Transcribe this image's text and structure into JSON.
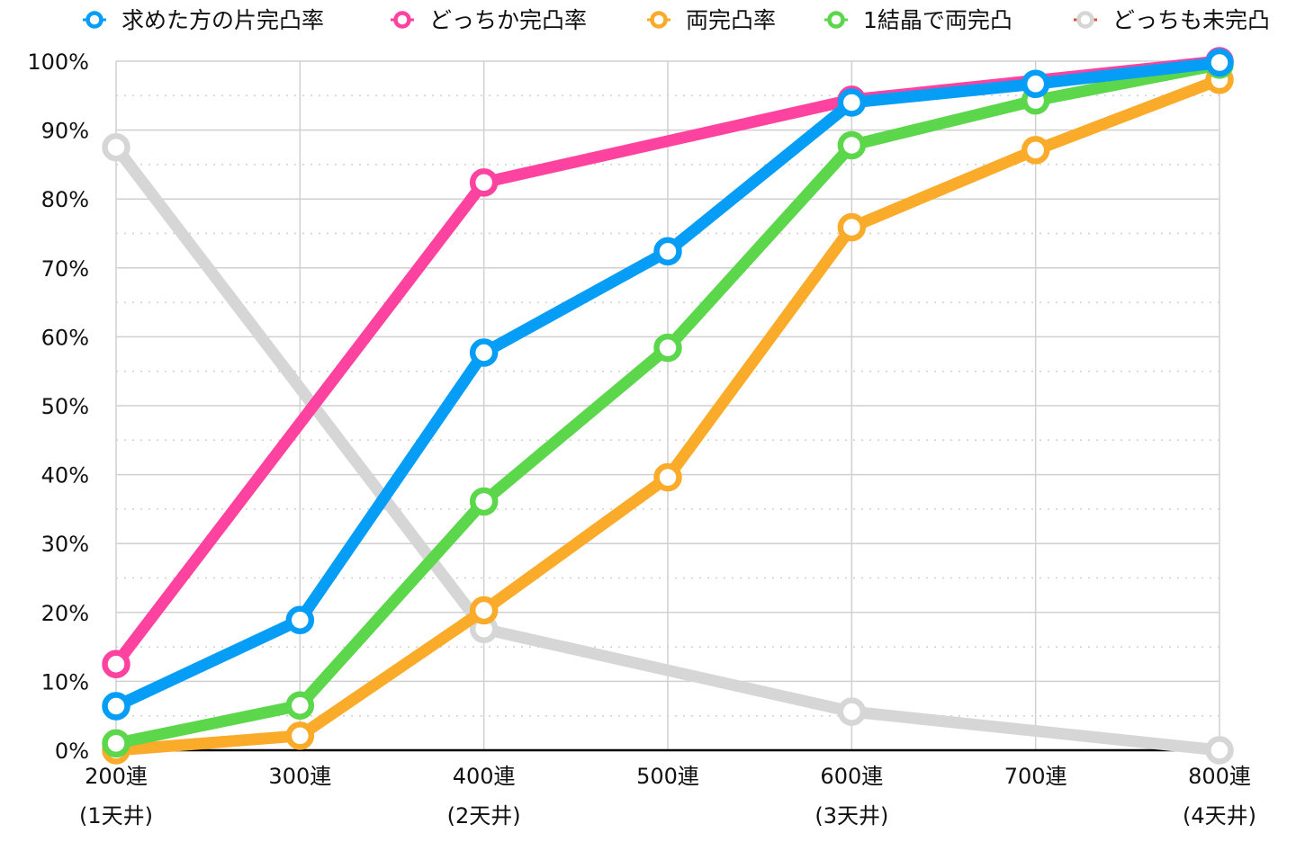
{
  "chart_data": {
    "type": "line",
    "categories": [
      "200連",
      "300連",
      "400連",
      "500連",
      "600連",
      "700連",
      "800連"
    ],
    "category_sublabels": [
      "(1天井)",
      "",
      "(2天井)",
      "",
      "(3天井)",
      "",
      "(4天井)"
    ],
    "ylim": [
      0,
      100
    ],
    "yticks": [
      "0%",
      "10%",
      "20%",
      "30%",
      "40%",
      "50%",
      "60%",
      "70%",
      "80%",
      "90%",
      "100%"
    ],
    "grid": true,
    "legend_position": "top",
    "series": [
      {
        "name": "どっちも未完凸",
        "color": "#d6d6d6",
        "values": [
          87.5,
          null,
          17.6,
          null,
          5.6,
          null,
          0
        ],
        "legend_marker_color": "#e05030"
      },
      {
        "name": "両完凸率",
        "color": "#fbab2a",
        "values": [
          0,
          2.1,
          20.3,
          39.6,
          75.9,
          87.1,
          97.3
        ]
      },
      {
        "name": "1結晶で両完凸",
        "color": "#5cd64b",
        "values": [
          1.0,
          6.5,
          36.1,
          58.4,
          87.8,
          94.3,
          99.5
        ]
      },
      {
        "name": "どっちか完凸率",
        "color": "#fe42a0",
        "values": [
          12.5,
          null,
          82.4,
          null,
          94.4,
          null,
          100
        ]
      },
      {
        "name": "求めた方の片完凸率",
        "color": "#059df6",
        "values": [
          6.4,
          18.9,
          57.7,
          72.4,
          94.0,
          96.7,
          99.8
        ]
      }
    ],
    "legend_order": [
      "求めた方の片完凸率",
      "どっちか完凸率",
      "両完凸率",
      "1結晶で両完凸",
      "どっちも未完凸"
    ]
  }
}
